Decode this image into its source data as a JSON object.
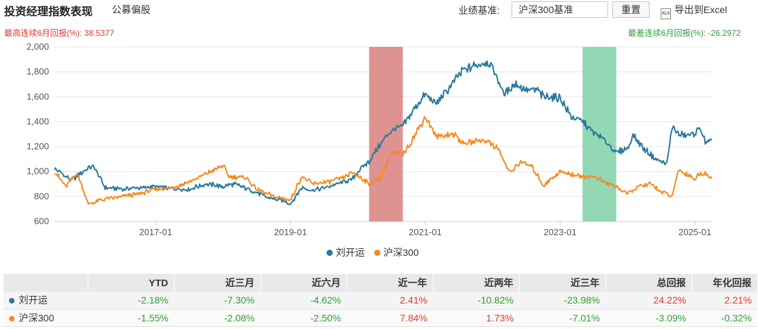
{
  "header": {
    "title": "投资经理指数表现",
    "subtitle": "公募偏股",
    "benchmark_label": "业绩基准:",
    "benchmark_value": "沪深300基准",
    "reset_label": "重置",
    "export_label": "导出到Excel",
    "export_icon": "xls-file-icon"
  },
  "stats": {
    "max_label": "最高连续6月回报(%):",
    "max_value": "38.5377",
    "min_label": "最差连续6月回报(%):",
    "min_value": "-26.2972"
  },
  "colors": {
    "manager": "#2878a0",
    "index": "#f5891f",
    "max_band": "#d9807e",
    "min_band": "#7fd1a7",
    "positive": "#e03a2f",
    "negative": "#2f9e35"
  },
  "chart_data": {
    "type": "line",
    "ylim": [
      600,
      2000
    ],
    "yticks": [
      "600",
      "800",
      "1,000",
      "1,200",
      "1,400",
      "1,600",
      "1,800",
      "2,000"
    ],
    "xtick_labels": [
      "2017-01",
      "2019-01",
      "2021-01",
      "2023-01",
      "2025-01"
    ],
    "xtick_dates": [
      "2017-01",
      "2019-01",
      "2021-01",
      "2023-01",
      "2025-01"
    ],
    "xlim": [
      "2015-07",
      "2025-04"
    ],
    "grid": "horizontal",
    "legend_position": "bottom",
    "highlight_bands": [
      {
        "start": "2020-03",
        "end": "2020-09",
        "kind": "best-6m"
      },
      {
        "start": "2023-05",
        "end": "2023-11",
        "kind": "worst-6m"
      }
    ],
    "series": [
      {
        "name": "刘开运",
        "color": "#2878a0",
        "points": [
          [
            "2015-07",
            1020
          ],
          [
            "2015-10",
            930
          ],
          [
            "2016-01",
            1030
          ],
          [
            "2016-02",
            1040
          ],
          [
            "2016-04",
            870
          ],
          [
            "2016-07",
            860
          ],
          [
            "2016-10",
            870
          ],
          [
            "2017-01",
            880
          ],
          [
            "2017-04",
            860
          ],
          [
            "2017-07",
            860
          ],
          [
            "2017-10",
            900
          ],
          [
            "2018-01",
            880
          ],
          [
            "2018-03",
            900
          ],
          [
            "2018-06",
            850
          ],
          [
            "2018-09",
            790
          ],
          [
            "2018-12",
            760
          ],
          [
            "2019-01",
            740
          ],
          [
            "2019-03",
            870
          ],
          [
            "2019-05",
            850
          ],
          [
            "2019-08",
            880
          ],
          [
            "2019-10",
            910
          ],
          [
            "2019-12",
            940
          ],
          [
            "2020-01",
            1000
          ],
          [
            "2020-03",
            1080
          ],
          [
            "2020-05",
            1220
          ],
          [
            "2020-07",
            1330
          ],
          [
            "2020-09",
            1360
          ],
          [
            "2020-11",
            1500
          ],
          [
            "2021-01",
            1620
          ],
          [
            "2021-03",
            1540
          ],
          [
            "2021-06",
            1720
          ],
          [
            "2021-08",
            1820
          ],
          [
            "2021-10",
            1850
          ],
          [
            "2021-12",
            1880
          ],
          [
            "2022-01",
            1830
          ],
          [
            "2022-03",
            1620
          ],
          [
            "2022-05",
            1700
          ],
          [
            "2022-07",
            1660
          ],
          [
            "2022-09",
            1650
          ],
          [
            "2022-10",
            1600
          ],
          [
            "2023-01",
            1590
          ],
          [
            "2023-03",
            1440
          ],
          [
            "2023-05",
            1400
          ],
          [
            "2023-07",
            1310
          ],
          [
            "2023-09",
            1250
          ],
          [
            "2023-11",
            1150
          ],
          [
            "2024-01",
            1190
          ],
          [
            "2024-02",
            1290
          ],
          [
            "2024-04",
            1180
          ],
          [
            "2024-06",
            1100
          ],
          [
            "2024-08",
            1060
          ],
          [
            "2024-09",
            1370
          ],
          [
            "2024-10",
            1300
          ],
          [
            "2024-12",
            1290
          ],
          [
            "2025-01",
            1310
          ],
          [
            "2025-02",
            1350
          ],
          [
            "2025-03",
            1220
          ],
          [
            "2025-04",
            1250
          ]
        ]
      },
      {
        "name": "沪深300",
        "color": "#f5891f",
        "points": [
          [
            "2015-07",
            1000
          ],
          [
            "2015-09",
            880
          ],
          [
            "2015-11",
            990
          ],
          [
            "2016-01",
            740
          ],
          [
            "2016-04",
            780
          ],
          [
            "2016-07",
            800
          ],
          [
            "2016-10",
            820
          ],
          [
            "2017-01",
            860
          ],
          [
            "2017-04",
            870
          ],
          [
            "2017-07",
            920
          ],
          [
            "2017-10",
            980
          ],
          [
            "2018-01",
            1050
          ],
          [
            "2018-02",
            960
          ],
          [
            "2018-05",
            950
          ],
          [
            "2018-07",
            860
          ],
          [
            "2018-10",
            800
          ],
          [
            "2019-01",
            770
          ],
          [
            "2019-03",
            960
          ],
          [
            "2019-05",
            900
          ],
          [
            "2019-08",
            920
          ],
          [
            "2019-10",
            940
          ],
          [
            "2019-12",
            990
          ],
          [
            "2020-01",
            970
          ],
          [
            "2020-03",
            900
          ],
          [
            "2020-05",
            950
          ],
          [
            "2020-07",
            1150
          ],
          [
            "2020-09",
            1140
          ],
          [
            "2020-11",
            1280
          ],
          [
            "2021-01",
            1440
          ],
          [
            "2021-03",
            1280
          ],
          [
            "2021-06",
            1300
          ],
          [
            "2021-08",
            1220
          ],
          [
            "2021-10",
            1250
          ],
          [
            "2021-12",
            1250
          ],
          [
            "2022-02",
            1180
          ],
          [
            "2022-04",
            990
          ],
          [
            "2022-06",
            1080
          ],
          [
            "2022-08",
            1040
          ],
          [
            "2022-10",
            890
          ],
          [
            "2023-01",
            1000
          ],
          [
            "2023-03",
            980
          ],
          [
            "2023-05",
            960
          ],
          [
            "2023-07",
            960
          ],
          [
            "2023-09",
            910
          ],
          [
            "2023-11",
            880
          ],
          [
            "2024-01",
            820
          ],
          [
            "2024-03",
            880
          ],
          [
            "2024-05",
            900
          ],
          [
            "2024-07",
            840
          ],
          [
            "2024-09",
            800
          ],
          [
            "2024-10",
            1010
          ],
          [
            "2024-12",
            970
          ],
          [
            "2025-01",
            940
          ],
          [
            "2025-02",
            990
          ],
          [
            "2025-04",
            960
          ]
        ]
      }
    ]
  },
  "table": {
    "headers": [
      "",
      "YTD",
      "近三月",
      "近六月",
      "近一年",
      "近两年",
      "近三年",
      "总回报",
      "年化回报"
    ],
    "rows": [
      {
        "name": "刘开运",
        "color": "#2878a0",
        "values": [
          "-2.18%",
          "-7.30%",
          "-4.62%",
          "2.41%",
          "-10.82%",
          "-23.98%",
          "24.22%",
          "2.21%"
        ]
      },
      {
        "name": "沪深300",
        "color": "#f5891f",
        "values": [
          "-1.55%",
          "-2.08%",
          "-2.50%",
          "7.84%",
          "1.73%",
          "-7.01%",
          "-3.09%",
          "-0.32%"
        ]
      }
    ]
  }
}
